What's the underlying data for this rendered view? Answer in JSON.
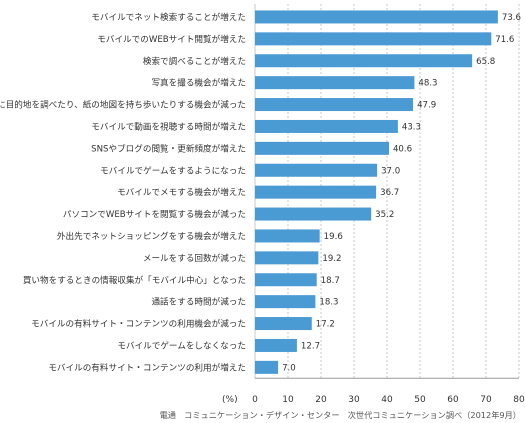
{
  "chart_data": {
    "type": "bar",
    "orientation": "horizontal",
    "categories": [
      "モバイルでネット検索することが増えた",
      "モバイルでのWEBサイト閲覧が増えた",
      "検索で調べることが増えた",
      "写真を撮る機会が増えた",
      "事前に目的地を調べたり、紙の地図を持ち歩いたりする機会が減った",
      "モバイルで動画を視聴する時間が増えた",
      "SNSやブログの閲覧・更新頻度が増えた",
      "モバイルでゲームをするようになった",
      "モバイルでメモする機会が増えた",
      "パソコンでWEBサイトを閲覧する機会が減った",
      "外出先でネットショッピングをする機会が増えた",
      "メールをする回数が減った",
      "買い物をするときの情報収集が「モバイル中心」となった",
      "通話をする時間が減った",
      "モバイルの有料サイト・コンテンツの利用機会が減った",
      "モバイルでゲームをしなくなった",
      "モバイルの有料サイト・コンテンツの利用が増えた"
    ],
    "values": [
      73.6,
      71.6,
      65.8,
      48.3,
      47.9,
      43.3,
      40.6,
      37.0,
      36.7,
      35.2,
      19.6,
      19.2,
      18.7,
      18.3,
      17.2,
      12.7,
      7.0
    ],
    "value_labels": [
      "73.6",
      "71.6",
      "65.8",
      "48.3",
      "47.9",
      "43.3",
      "40.6",
      "37.0",
      "36.7",
      "35.2",
      "19.6",
      "19.2",
      "18.7",
      "18.3",
      "17.2",
      "12.7",
      "7.0"
    ],
    "xlim": [
      0,
      80
    ],
    "xticks": [
      0,
      10,
      20,
      30,
      40,
      50,
      60,
      70,
      80
    ],
    "unit_label": "(%)",
    "grid": true,
    "bar_color": "#4a9ad4",
    "grid_color": "#c8c8c8",
    "source": "電通　コミュニケーション・デザイン・センター　次世代コミュニケーション調べ（2012年9月）"
  }
}
